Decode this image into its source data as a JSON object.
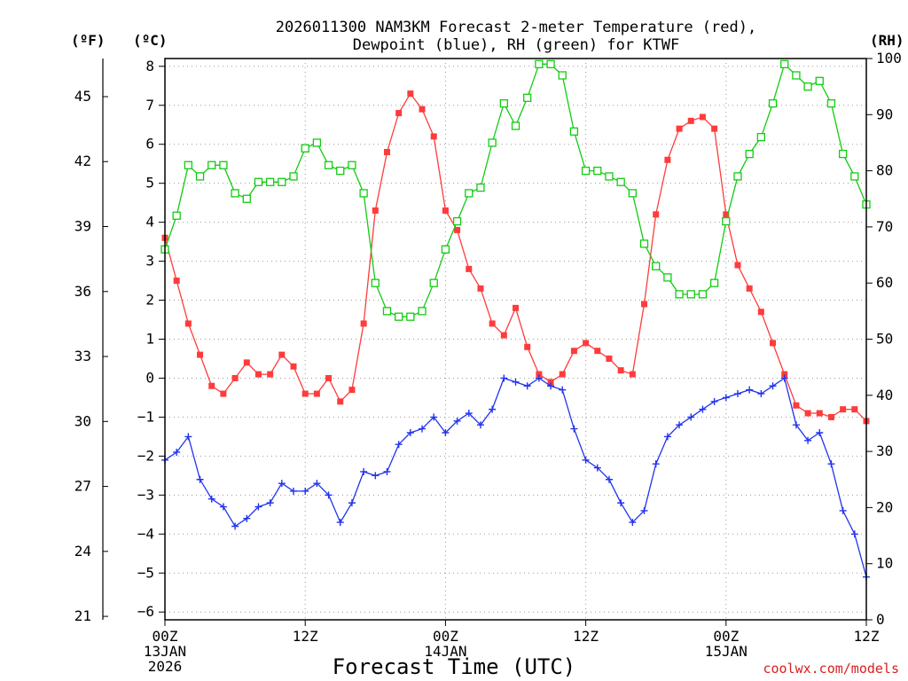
{
  "colors": {
    "temperature": "#ff3b3b",
    "dewpoint": "#2233ee",
    "rh": "#11cc11",
    "credit": "#d72020",
    "grid": "#9a9a9a"
  },
  "labels": {
    "title_line1": "2026011300 NAM3KM Forecast 2-meter Temperature (red),",
    "title_line2": "Dewpoint (blue), RH (green) for KTWF",
    "unit_f": "(ºF)",
    "unit_c": "(ºC)",
    "unit_rh": "(RH)",
    "xlabel": "Forecast Time (UTC)",
    "credit": "coolwx.com/models"
  },
  "chart_data": {
    "type": "line",
    "title": "2026011300 NAM3KM Forecast 2-meter Temperature (red), Dewpoint (blue), RH (green) for KTWF",
    "xlabel": "Forecast Time (UTC)",
    "x_unit": "forecast hour",
    "xlim": [
      0,
      60
    ],
    "x_ticks": [
      {
        "hour": 0,
        "lines": [
          "00Z",
          "13JAN",
          "2026"
        ]
      },
      {
        "hour": 12,
        "lines": [
          "12Z"
        ]
      },
      {
        "hour": 24,
        "lines": [
          "00Z",
          "14JAN"
        ]
      },
      {
        "hour": 36,
        "lines": [
          "12Z"
        ]
      },
      {
        "hour": 48,
        "lines": [
          "00Z",
          "15JAN"
        ]
      },
      {
        "hour": 60,
        "lines": [
          "12Z"
        ]
      }
    ],
    "y_left_celsius": {
      "label": "(ºC)",
      "lim": [
        -6.2,
        8.2
      ],
      "ticks": [
        "-6",
        "-5",
        "-4",
        "-3",
        "-2",
        "-1",
        "0",
        "1",
        "2",
        "3",
        "4",
        "5",
        "6",
        "7",
        "8"
      ]
    },
    "y_far_left_fahrenheit": {
      "label": "(ºF)",
      "lim": [
        20.84,
        46.76
      ],
      "ticks": [
        "21",
        "24",
        "27",
        "30",
        "33",
        "36",
        "39",
        "42",
        "45"
      ]
    },
    "y_right_rh": {
      "label": "(RH)",
      "lim": [
        0,
        100
      ],
      "ticks": [
        "0",
        "10",
        "20",
        "30",
        "40",
        "50",
        "60",
        "70",
        "80",
        "90",
        "100"
      ]
    },
    "x": [
      0,
      1,
      2,
      3,
      4,
      5,
      6,
      7,
      8,
      9,
      10,
      11,
      12,
      13,
      14,
      15,
      16,
      17,
      18,
      19,
      20,
      21,
      22,
      23,
      24,
      25,
      26,
      27,
      28,
      29,
      30,
      31,
      32,
      33,
      34,
      35,
      36,
      37,
      38,
      39,
      40,
      41,
      42,
      43,
      44,
      45,
      46,
      47,
      48,
      49,
      50,
      51,
      52,
      53,
      54,
      55,
      56,
      57,
      58,
      59,
      60
    ],
    "series": [
      {
        "name": "2-meter Temperature",
        "unit": "C",
        "axis": "celsius",
        "marker": "filled-square",
        "color": "#ff3b3b",
        "values": [
          3.6,
          2.5,
          1.4,
          0.6,
          -0.2,
          -0.4,
          0.0,
          0.4,
          0.1,
          0.1,
          0.6,
          0.3,
          -0.4,
          -0.4,
          0.0,
          -0.6,
          -0.3,
          1.4,
          4.3,
          5.8,
          6.8,
          7.3,
          6.9,
          6.2,
          4.3,
          3.8,
          2.8,
          2.3,
          1.4,
          1.1,
          1.8,
          0.8,
          0.1,
          -0.1,
          0.1,
          0.7,
          0.9,
          0.7,
          0.5,
          0.2,
          0.1,
          1.9,
          4.2,
          5.6,
          6.4,
          6.6,
          6.7,
          6.4,
          4.2,
          2.9,
          2.3,
          1.7,
          0.9,
          0.1,
          -0.7,
          -0.9,
          -0.9,
          -1.0,
          -0.8,
          -0.8,
          -1.1
        ]
      },
      {
        "name": "Dewpoint",
        "unit": "C",
        "axis": "celsius",
        "marker": "plus",
        "color": "#2233ee",
        "values": [
          -2.1,
          -1.9,
          -1.5,
          -2.6,
          -3.1,
          -3.3,
          -3.8,
          -3.6,
          -3.3,
          -3.2,
          -2.7,
          -2.9,
          -2.9,
          -2.7,
          -3.0,
          -3.7,
          -3.2,
          -2.4,
          -2.5,
          -2.4,
          -1.7,
          -1.4,
          -1.3,
          -1.0,
          -1.4,
          -1.1,
          -0.9,
          -1.2,
          -0.8,
          0.0,
          -0.1,
          -0.2,
          0.0,
          -0.2,
          -0.3,
          -1.3,
          -2.1,
          -2.3,
          -2.6,
          -3.2,
          -3.7,
          -3.4,
          -2.2,
          -1.5,
          -1.2,
          -1.0,
          -0.8,
          -0.6,
          -0.5,
          -0.4,
          -0.3,
          -0.4,
          -0.2,
          0.0,
          -1.2,
          -1.6,
          -1.4,
          -2.2,
          -3.4,
          -4.0,
          -5.1
        ]
      },
      {
        "name": "RH",
        "unit": "%",
        "axis": "rh",
        "marker": "open-square",
        "color": "#11cc11",
        "values": [
          66,
          72,
          81,
          79,
          81,
          81,
          76,
          75,
          78,
          78,
          78,
          79,
          84,
          85,
          81,
          80,
          81,
          76,
          60,
          55,
          54,
          54,
          55,
          60,
          66,
          71,
          76,
          77,
          85,
          92,
          88,
          93,
          99,
          99,
          97,
          87,
          80,
          80,
          79,
          78,
          76,
          67,
          63,
          61,
          58,
          58,
          58,
          60,
          71,
          79,
          83,
          86,
          92,
          99,
          97,
          95,
          96,
          92,
          83,
          79,
          74
        ]
      }
    ]
  }
}
